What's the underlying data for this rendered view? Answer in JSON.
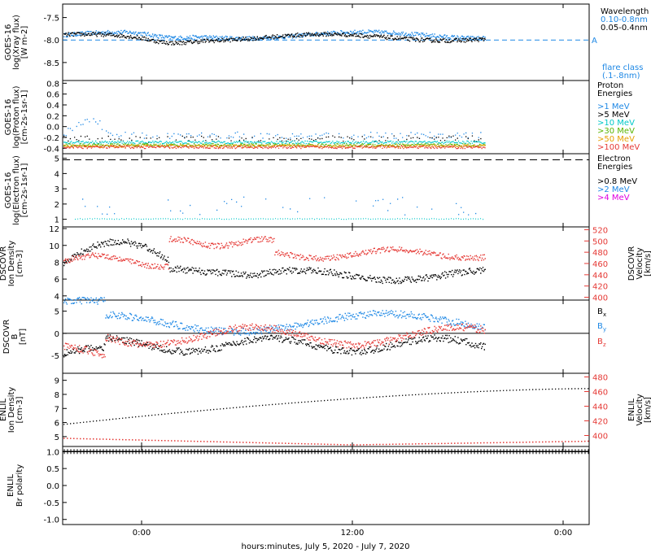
{
  "footer": {
    "xlabel": "hours:minutes, July  5, 2020 - July  7, 2020"
  },
  "x_ticks": [
    "0:00",
    "12:00",
    "0:00"
  ],
  "colors": {
    "black": "#000000",
    "blue": "#1e88e5",
    "red": "#e53935",
    "cyan": "#00c8c8",
    "green": "#5ab400",
    "orange": "#e6a000",
    "magenta": "#e000e0"
  },
  "chart_data": [
    {
      "type": "scatter",
      "panel": "xray",
      "ylabel": [
        "GOES-16",
        "log(Xray flux)",
        "[W m-2]"
      ],
      "yticks": [
        "-7.5",
        "-8.0",
        "-8.5"
      ],
      "ylim": [
        -8.9,
        -7.2
      ],
      "flare_marker": "A",
      "flare_level": -8.0,
      "legend": {
        "title": "Wavelength",
        "entries": [
          "0.10-0.8nm",
          "0.05-0.4nm"
        ],
        "note": [
          "flare class",
          "(.1-.8nm)"
        ]
      },
      "series": [
        {
          "name": "0.10-0.8nm",
          "color": "blue",
          "base": -7.88
        },
        {
          "name": "0.05-0.4nm",
          "color": "black",
          "base": -7.93
        }
      ]
    },
    {
      "type": "scatter",
      "panel": "proton",
      "ylabel": [
        "GOES-16",
        "log(Proton flux)",
        "[cm-2s-1sr-1]"
      ],
      "yticks": [
        "0.8",
        "0.6",
        "0.4",
        "0.2",
        "0.0",
        "-0.2",
        "-0.4"
      ],
      "ylim": [
        -0.5,
        0.85
      ],
      "legend": {
        "title": [
          "Proton",
          "Energies"
        ],
        "entries": [
          ">1 MeV",
          ">5 MeV",
          ">10 MeV",
          ">30 MeV",
          ">50 MeV",
          ">100 MeV"
        ]
      },
      "series": [
        {
          "name": ">1 MeV",
          "color": "blue",
          "base": -0.15
        },
        {
          "name": ">5 MeV",
          "color": "black",
          "base": -0.22
        },
        {
          "name": ">10 MeV",
          "color": "cyan",
          "base": -0.28
        },
        {
          "name": ">30 MeV",
          "color": "green",
          "base": -0.33
        },
        {
          "name": ">50 MeV",
          "color": "orange",
          "base": -0.35
        },
        {
          "name": ">100 MeV",
          "color": "red",
          "base": -0.37
        }
      ]
    },
    {
      "type": "scatter",
      "panel": "electron",
      "ylabel": [
        "GOES-16",
        "log(Electron flux)",
        "[cm-2s-1sr-1]"
      ],
      "yticks": [
        "5",
        "4",
        "3",
        "2",
        "1"
      ],
      "ylim": [
        0.5,
        5.3
      ],
      "dashed_level": 4.9,
      "legend": {
        "title": [
          "Electron",
          "Energies"
        ],
        "entries": [
          ">0.8 MeV",
          ">2 MeV",
          ">4 MeV"
        ]
      },
      "series": [
        {
          "name": ">2 MeV",
          "color": "blue",
          "base": 1.5
        }
      ]
    },
    {
      "type": "scatter",
      "panel": "dscovr_plasma",
      "ylabel": [
        "DSCOVR",
        "Ion Density",
        "[cm-3]"
      ],
      "y2label": [
        "DSCOVR",
        "Velocity",
        "[km/s]"
      ],
      "yticks": [
        "12",
        "10",
        "8",
        "6",
        "4"
      ],
      "y2ticks": [
        "520",
        "500",
        "480",
        "460",
        "440",
        "420",
        "400"
      ],
      "ylim": [
        3.5,
        12.2
      ],
      "y2lim": [
        395,
        525
      ],
      "series": [
        {
          "name": "Ion Density",
          "color": "black"
        },
        {
          "name": "Velocity",
          "color": "red"
        }
      ]
    },
    {
      "type": "scatter",
      "panel": "dscovr_mag",
      "ylabel": [
        "DSCOVR",
        "B",
        "[nT]"
      ],
      "yticks": [
        "5",
        "0",
        "-5"
      ],
      "ylim": [
        -9,
        7.5
      ],
      "legend": {
        "entries": [
          "Bx",
          "By",
          "Bz"
        ]
      },
      "series": [
        {
          "name": "Bx",
          "color": "black"
        },
        {
          "name": "By",
          "color": "blue"
        },
        {
          "name": "Bz",
          "color": "red"
        }
      ]
    },
    {
      "type": "scatter",
      "panel": "enlil_plasma",
      "ylabel": [
        "ENLIL",
        "Ion Density",
        "[cm-3]"
      ],
      "y2label": [
        "ENLIL",
        "Velocity",
        "[km/s]"
      ],
      "yticks": [
        "9",
        "8",
        "7",
        "6",
        "5"
      ],
      "y2ticks": [
        "480",
        "460",
        "440",
        "420",
        "400"
      ],
      "ylim": [
        4.3,
        9.5
      ],
      "y2lim": [
        385,
        485
      ],
      "density": {
        "start": 5.9,
        "end": 8.45
      },
      "velocity": {
        "start": 397,
        "mid": 388,
        "end": 393
      }
    },
    {
      "type": "scatter",
      "panel": "enlil_polarity",
      "ylabel": [
        "ENLIL",
        "Br polarity"
      ],
      "yticks": [
        "1.0",
        "0.5",
        "0.0",
        "-0.5",
        "-1.0"
      ],
      "ylim": [
        -1.15,
        1.15
      ],
      "level": 1.0
    }
  ]
}
